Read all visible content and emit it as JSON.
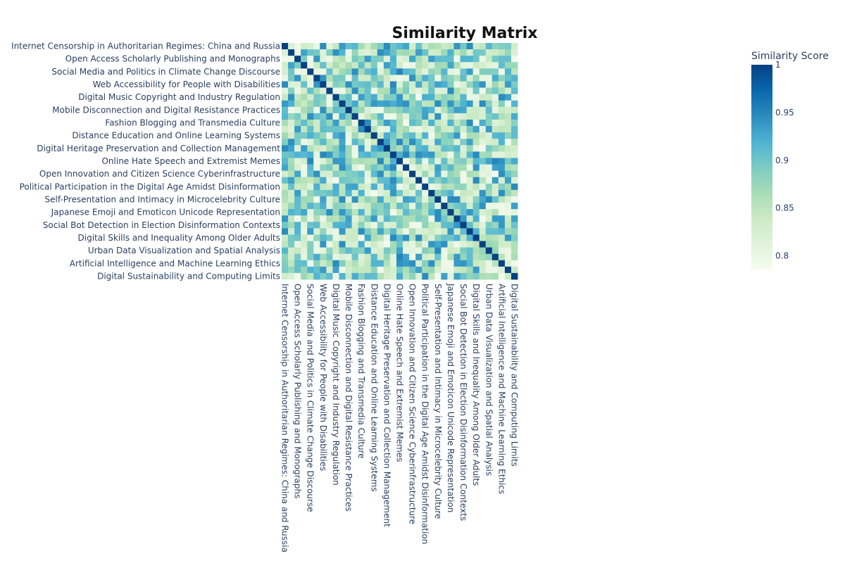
{
  "chart_data": {
    "type": "heatmap",
    "title": "Similarity Matrix",
    "colorbar": {
      "title": "Similarity Score",
      "range": [
        0.785,
        1.0
      ],
      "ticks": [
        {
          "value": 1,
          "label": "1"
        },
        {
          "value": 0.95,
          "label": "0.95"
        },
        {
          "value": 0.9,
          "label": "0.9"
        },
        {
          "value": 0.85,
          "label": "0.85"
        },
        {
          "value": 0.8,
          "label": "0.8"
        }
      ],
      "colorscale": [
        "#f7fcf0",
        "#e0f3db",
        "#ccebc5",
        "#a8ddb5",
        "#7bccc4",
        "#4eb3d3",
        "#2b8cbe",
        "#0868ac",
        "#084081"
      ]
    },
    "grid_size": 37,
    "labeled_rows": [
      {
        "index": 0,
        "label": "Internet Censorship in Authoritarian Regimes: China and Russia"
      },
      {
        "index": 2,
        "label": "Open Access Scholarly Publishing and Monographs"
      },
      {
        "index": 4,
        "label": "Social Media and Politics in Climate Change Discourse"
      },
      {
        "index": 6,
        "label": "Web Accessibility for People with Disabilities"
      },
      {
        "index": 8,
        "label": "Digital Music Copyright and Industry Regulation"
      },
      {
        "index": 10,
        "label": "Mobile Disconnection and Digital Resistance Practices"
      },
      {
        "index": 12,
        "label": "Fashion Blogging and Transmedia Culture"
      },
      {
        "index": 14,
        "label": "Distance Education and Online Learning Systems"
      },
      {
        "index": 16,
        "label": "Digital Heritage Preservation and Collection Management"
      },
      {
        "index": 18,
        "label": "Online Hate Speech and Extremist Memes"
      },
      {
        "index": 20,
        "label": "Open Innovation and Citizen Science Cyberinfrastructure"
      },
      {
        "index": 22,
        "label": "Political Participation in the Digital Age Amidst Disinformation"
      },
      {
        "index": 24,
        "label": "Self-Presentation and Intimacy in Microcelebrity Culture"
      },
      {
        "index": 26,
        "label": "Japanese Emoji and Emoticon Unicode Representation"
      },
      {
        "index": 28,
        "label": "Social Bot Detection in Election Disinformation Contexts"
      },
      {
        "index": 30,
        "label": "Digital Skills and Inequality Among Older Adults"
      },
      {
        "index": 32,
        "label": "Urban Data Visualization and Spatial Analysis"
      },
      {
        "index": 34,
        "label": "Artificial Intelligence and Machine Learning Ethics"
      },
      {
        "index": 36,
        "label": "Digital Sustainability and Computing Limits"
      }
    ],
    "value_range": [
      0.79,
      0.95
    ],
    "diagonal_value": 1.0,
    "grid": false,
    "colorbar_position": "right"
  }
}
